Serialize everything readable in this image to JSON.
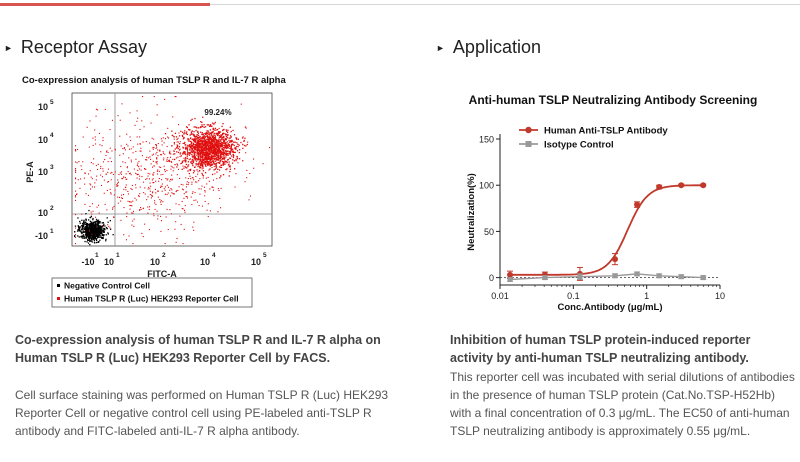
{
  "sections": {
    "left": {
      "title": "Receptor Assay",
      "figure_title": "Co-expression analysis of human TSLP R and IL-7 R alpha",
      "caption_title": "Co-expression analysis of human TSLP R and IL-7 R alpha on Human TSLP R (Luc) HEK293 Reporter Cell by FACS.",
      "caption_body": "Cell surface staining was performed on Human TSLP R (Luc) HEK293 Reporter Cell or negative control cell using PE-labeled anti-TSLP R antibody and FITC-labeled anti-IL-7 R alpha antibody."
    },
    "right": {
      "title": "Application",
      "caption_title": "Inhibition of human TSLP protein-induced reporter activity by anti-human TSLP neutralizing antibody.",
      "caption_body": "This reporter cell was incubated with serial dilutions of antibodies in the presence of human TSLP protein (Cat.No.TSP-H52Hb) with a final concentration of 0.3 μg/mL. The EC50 of anti-human TSLP neutralizing antibody is approximately 0.55 μg/mL."
    }
  },
  "chart_data": [
    {
      "type": "scatter",
      "title": "Co-expression analysis of human TSLP R and IL-7 R alpha",
      "xlabel": "FITC-A",
      "ylabel": "PE-A",
      "xticks": [
        "-10",
        "10",
        "10",
        "10",
        "10"
      ],
      "xtick_exponents": [
        "1",
        "1",
        "2",
        "4",
        "5"
      ],
      "yticks": [
        "10",
        "10",
        "10",
        "10",
        "10",
        "-10"
      ],
      "ytick_exponents": [
        "5",
        "4",
        "3",
        "2",
        "1",
        "1"
      ],
      "gate_percent_label": "99.24%",
      "populations": [
        {
          "name": "Negative Control Cell",
          "color": "#000000",
          "center_fitc": "low",
          "center_pe": "low"
        },
        {
          "name": "Human TSLP R (Luc) HEK293 Reporter Cell",
          "color": "#e01010",
          "center_fitc": "high",
          "center_pe": "high"
        }
      ],
      "colors": {
        "negative": "#000000",
        "reporter": "#e01010",
        "gate": "#888888"
      }
    },
    {
      "type": "line",
      "title": "Anti-human TSLP Neutralizing Antibody Screening",
      "xlabel": "Conc.Antibody (μg/mL)",
      "ylabel": "Neutralization(%)",
      "xscale": "log",
      "xlim": [
        0.01,
        10
      ],
      "ylim": [
        -8,
        150
      ],
      "xticks": [
        "0.01",
        "0.1",
        "1",
        "10"
      ],
      "yticks": [
        "0",
        "50",
        "100",
        "150"
      ],
      "legend_position": "top-left",
      "series": [
        {
          "name": "Human Anti-TSLP Antibody",
          "color": "#c0392b",
          "marker": "circle",
          "x": [
            0.0137,
            0.041,
            0.123,
            0.37,
            0.74,
            1.48,
            2.96,
            5.9
          ],
          "y": [
            3,
            3,
            4,
            20,
            79,
            98,
            100,
            100
          ],
          "err": [
            4,
            3,
            7,
            6,
            3,
            2,
            1,
            1
          ],
          "fit_ec50": 0.55
        },
        {
          "name": "Isotype Control",
          "color": "#999999",
          "marker": "square",
          "x": [
            0.0137,
            0.041,
            0.123,
            0.37,
            0.74,
            1.48,
            2.96,
            5.9
          ],
          "y": [
            -2,
            0,
            1,
            2,
            4,
            2,
            1,
            0
          ],
          "err": [
            2,
            2,
            3,
            2,
            2,
            2,
            2,
            2
          ]
        }
      ]
    }
  ]
}
